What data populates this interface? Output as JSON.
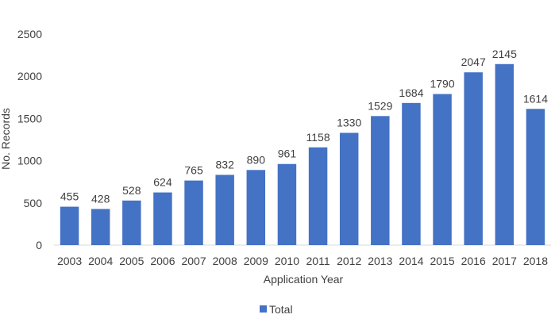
{
  "chart_data": {
    "type": "bar",
    "categories": [
      "2003",
      "2004",
      "2005",
      "2006",
      "2007",
      "2008",
      "2009",
      "2010",
      "2011",
      "2012",
      "2013",
      "2014",
      "2015",
      "2016",
      "2017",
      "2018"
    ],
    "series": [
      {
        "name": "Total",
        "values": [
          455,
          428,
          528,
          624,
          765,
          832,
          890,
          961,
          1158,
          1330,
          1529,
          1684,
          1790,
          2047,
          2145,
          1614
        ]
      }
    ],
    "xlabel": "Application Year",
    "ylabel": "No. Records",
    "ylim": [
      0,
      2500
    ],
    "yticks": [
      0,
      500,
      1000,
      1500,
      2000,
      2500
    ],
    "grid": false,
    "legend": "bottom",
    "data_labels": true,
    "colors": {
      "bar": "#4472C4",
      "text": "#404040",
      "axis": "#d9d9d9"
    }
  }
}
